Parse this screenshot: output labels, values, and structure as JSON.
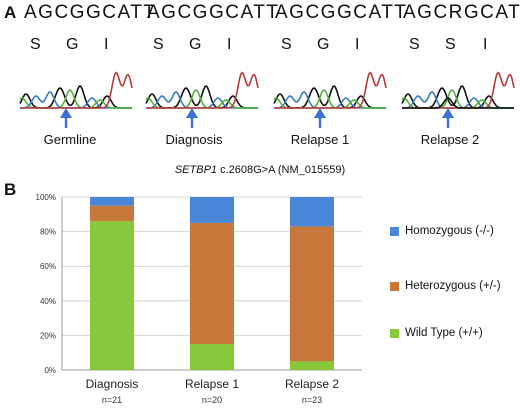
{
  "panel_a": {
    "letter": "A",
    "samples": [
      {
        "sequence": "AGCGGCATT",
        "amino_acids": [
          "S",
          "G",
          "I"
        ],
        "label": "Germline"
      },
      {
        "sequence": "AGCGGCATT",
        "amino_acids": [
          "S",
          "G",
          "I"
        ],
        "label": "Diagnosis"
      },
      {
        "sequence": "AGCGGCATT",
        "amino_acids": [
          "S",
          "G",
          "I"
        ],
        "label": "Relapse 1"
      },
      {
        "sequence": "AGCRGCATT",
        "amino_acids": [
          "S",
          "S",
          "I"
        ],
        "label": "Relapse 2"
      }
    ],
    "gene_italic": "SETBP1",
    "gene_rest": " c.2608G>A (NM_015559)"
  },
  "panel_b": {
    "letter": "B"
  },
  "colors": {
    "homozygous": "#4a86d8",
    "heterozygous": "#c8773a",
    "wild_type": "#86c83a",
    "arrow": "#3b6fd1",
    "trace_black": "#111111",
    "trace_blue": "#3a78c9",
    "trace_green": "#52b43c",
    "trace_red": "#b8373a"
  },
  "chart_data": {
    "type": "bar",
    "stacked": true,
    "categories": [
      "Diagnosis",
      "Relapse 1",
      "Relapse 2"
    ],
    "sample_sizes": [
      "n=21",
      "n=20",
      "n=23"
    ],
    "series": [
      {
        "name": "Wild Type (+/+)",
        "values": [
          86,
          15,
          5
        ]
      },
      {
        "name": "Heterozygous (+/-)",
        "values": [
          9,
          70,
          78
        ]
      },
      {
        "name": "Homozygous (-/-)",
        "values": [
          5,
          15,
          17
        ]
      }
    ],
    "legend_order": [
      "Homozygous (-/-)",
      "Heterozygous (+/-)",
      "Wild Type (+/+)"
    ],
    "y_ticks": [
      "0%",
      "20%",
      "40%",
      "60%",
      "80%",
      "100%"
    ],
    "ylim": [
      0,
      100
    ],
    "legend_position": "right"
  }
}
